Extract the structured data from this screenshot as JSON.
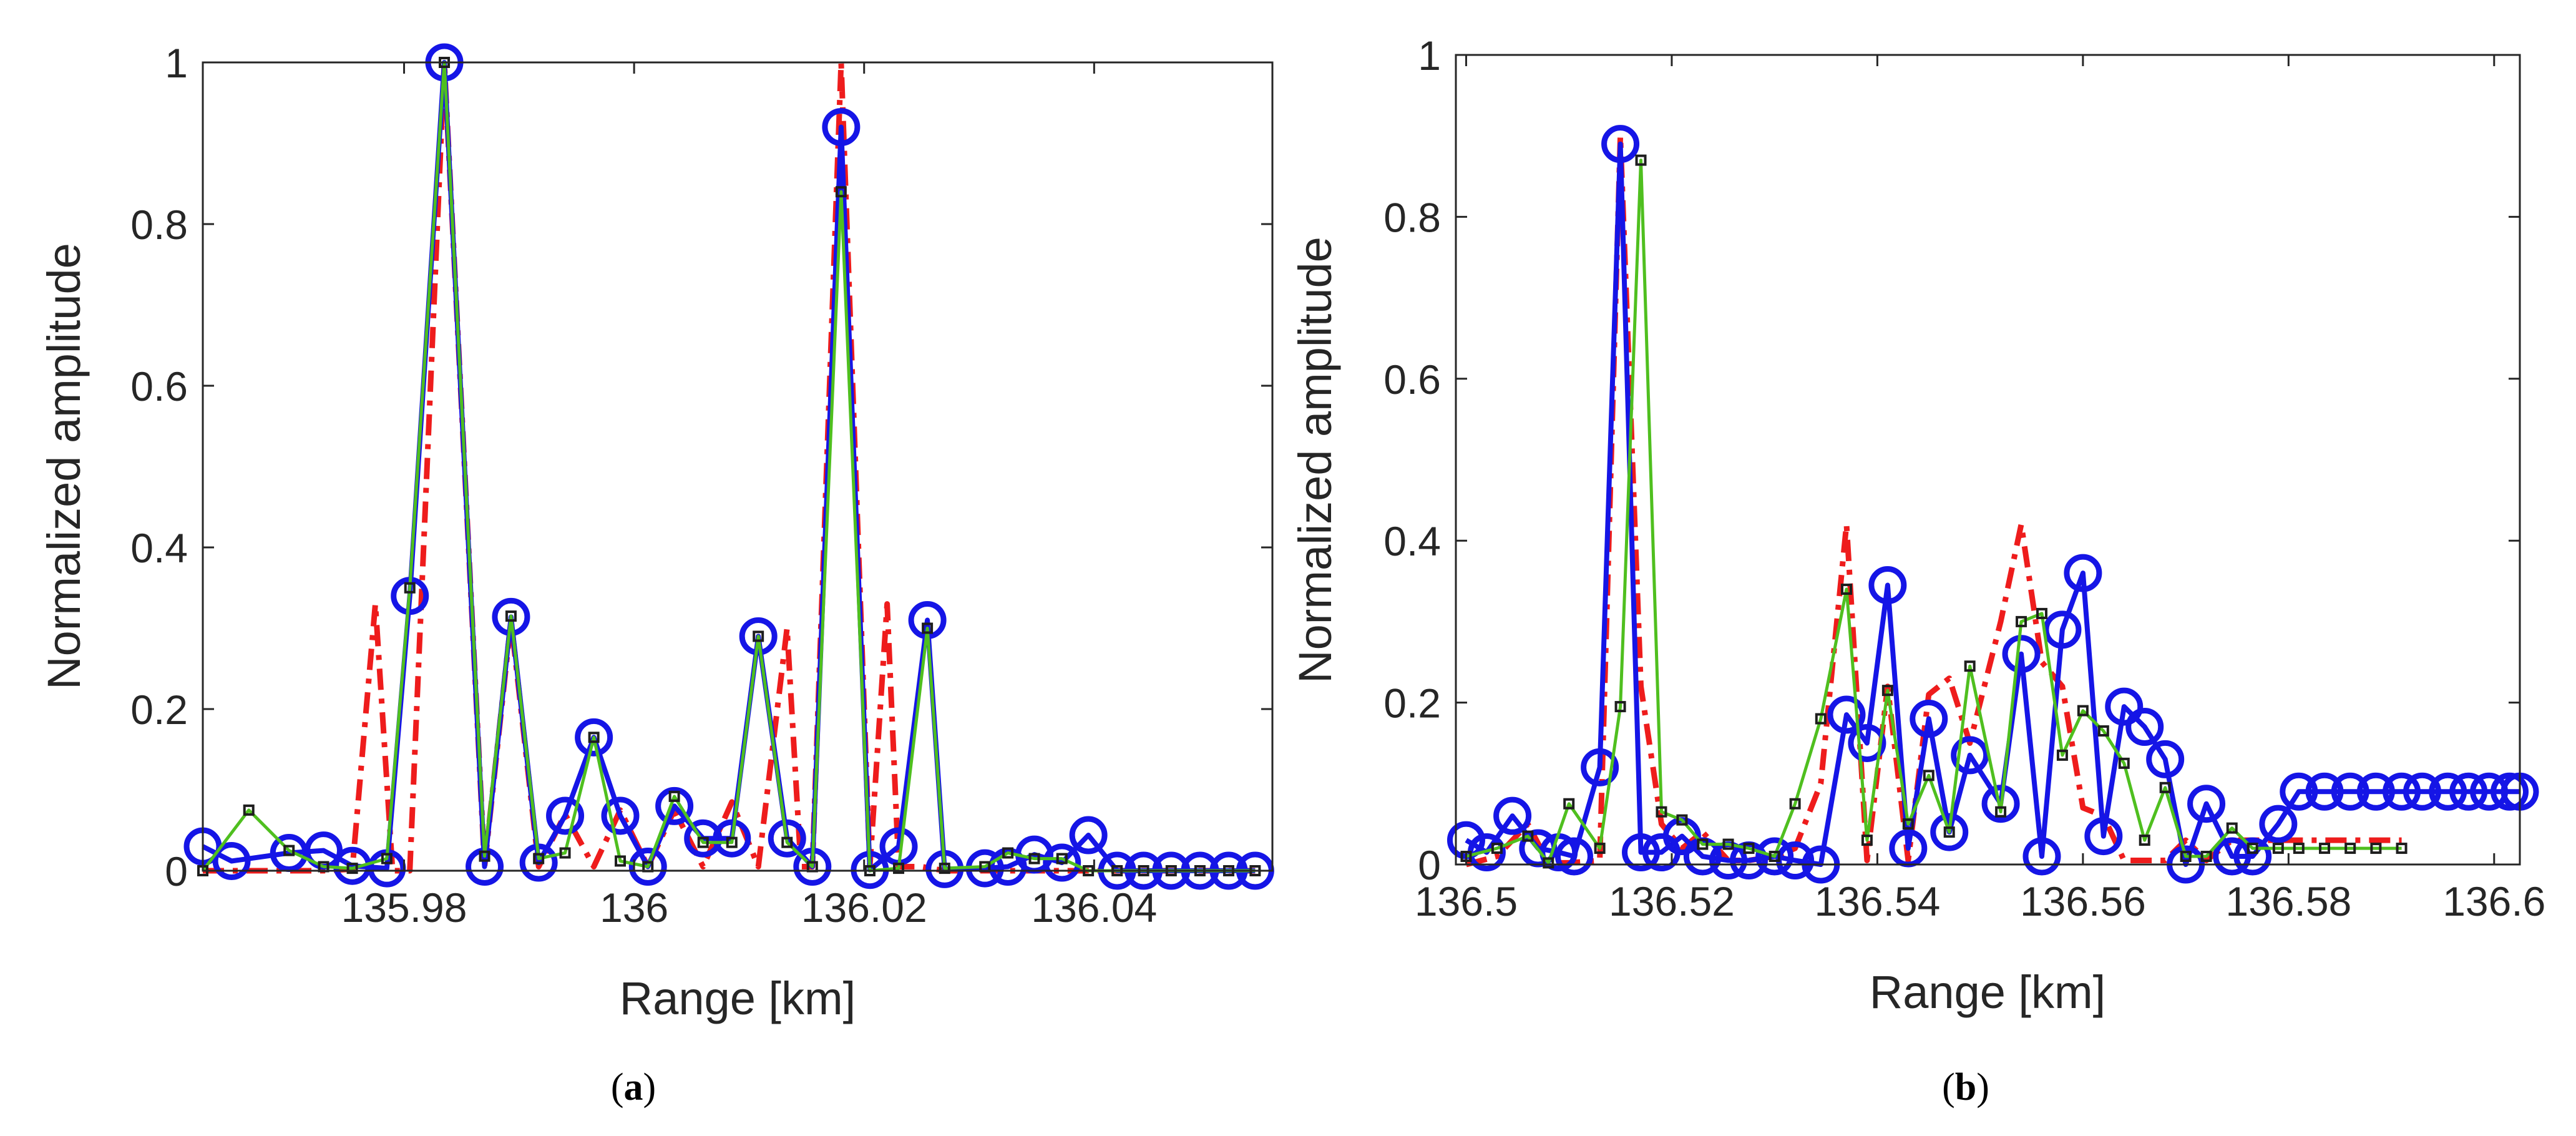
{
  "chart_data": [
    {
      "type": "line",
      "panel": "a",
      "caption": {
        "open": "(",
        "letter": "a",
        "close": ")"
      },
      "xlabel": "Range [km]",
      "ylabel": "Normalized amplitude",
      "xlim": [
        135.9625,
        136.0555
      ],
      "ylim": [
        0,
        1
      ],
      "xticks": [
        135.98,
        136,
        136.02,
        136.04
      ],
      "xtick_labels": [
        "135.98",
        "136",
        "136.02",
        "136.04"
      ],
      "yticks": [
        0,
        0.2,
        0.4,
        0.6,
        0.8,
        1
      ],
      "ytick_labels": [
        "0",
        "0.2",
        "0.4",
        "0.6",
        "0.8",
        "1"
      ],
      "series": [
        {
          "name": "blue circles",
          "color": "#1515e6",
          "marker": "circle",
          "style": "solid",
          "x": [
            135.9625,
            135.965,
            135.97,
            135.973,
            135.9755,
            135.9785,
            135.9805,
            135.9835,
            135.987,
            135.9893,
            135.9917,
            135.994,
            135.9965,
            135.9988,
            136.0012,
            136.0035,
            136.006,
            136.0085,
            136.0108,
            136.0133,
            136.0155,
            136.018,
            136.0205,
            136.023,
            136.0255,
            136.027,
            136.0305,
            136.0325,
            136.0348,
            136.0372,
            136.0395,
            136.042,
            136.0443,
            136.0467,
            136.0492,
            136.0517,
            136.054
          ],
          "y": [
            0.03,
            0.012,
            0.022,
            0.025,
            0.006,
            0.003,
            0.34,
            1.0,
            0.005,
            0.314,
            0.01,
            0.068,
            0.165,
            0.068,
            0.005,
            0.08,
            0.04,
            0.04,
            0.29,
            0.04,
            0.005,
            0.92,
            0.001,
            0.03,
            0.31,
            0.002,
            0.003,
            0.005,
            0.02,
            0.01,
            0.044,
            0.0,
            0.0,
            0.0,
            0.0,
            0.0,
            0.0
          ]
        },
        {
          "name": "green squares",
          "color": "#4fbf1f",
          "marker": "square",
          "style": "solid",
          "x": [
            135.9625,
            135.9665,
            135.97,
            135.973,
            135.9755,
            135.9785,
            135.9805,
            135.9835,
            135.987,
            135.9893,
            135.9917,
            135.994,
            135.9965,
            135.9988,
            136.0012,
            136.0035,
            136.006,
            136.0085,
            136.0108,
            136.0133,
            136.0155,
            136.018,
            136.0205,
            136.023,
            136.0255,
            136.027,
            136.0305,
            136.0325,
            136.0348,
            136.0372,
            136.0395,
            136.042,
            136.0443,
            136.0467,
            136.0492,
            136.0517,
            136.054
          ],
          "y": [
            0.0,
            0.075,
            0.025,
            0.005,
            0.003,
            0.015,
            0.35,
            1.0,
            0.018,
            0.315,
            0.015,
            0.022,
            0.165,
            0.012,
            0.005,
            0.092,
            0.035,
            0.035,
            0.29,
            0.035,
            0.005,
            0.84,
            0.0,
            0.003,
            0.3,
            0.003,
            0.005,
            0.022,
            0.015,
            0.015,
            0.0,
            0.0,
            0.0,
            0.0,
            0.0,
            0.0,
            0.0
          ]
        },
        {
          "name": "red dash-dot",
          "color": "#ee1c1c",
          "marker": "none",
          "style": "dash-dot",
          "x": [
            135.9625,
            135.965,
            135.97,
            135.973,
            135.9755,
            135.9775,
            135.979,
            135.9805,
            135.9835,
            135.987,
            135.9893,
            135.9917,
            135.994,
            135.9965,
            135.9988,
            136.0012,
            136.0035,
            136.006,
            136.0085,
            136.0108,
            136.0133,
            136.0145,
            136.0155,
            136.018,
            136.0205,
            136.022,
            136.023,
            136.025,
            136.027,
            136.0305,
            136.0325,
            136.0348,
            136.0372,
            136.0395,
            136.042,
            136.0443,
            136.0467,
            136.0492,
            136.0517,
            136.054
          ],
          "y": [
            0.0,
            0.0,
            0.0,
            0.0,
            0.002,
            0.33,
            0.0,
            0.0,
            1.0,
            0.005,
            0.31,
            0.005,
            0.07,
            0.005,
            0.075,
            0.005,
            0.075,
            0.005,
            0.085,
            0.005,
            0.3,
            0.005,
            0.005,
            1.0,
            0.005,
            0.33,
            0.005,
            0.005,
            0.0,
            0.0,
            0.0,
            0.0,
            0.0,
            0.0,
            0.0,
            0.0,
            0.0,
            0.0,
            0.0,
            0.0
          ]
        }
      ]
    },
    {
      "type": "line",
      "panel": "b",
      "caption": {
        "open": "(",
        "letter": "b",
        "close": ")"
      },
      "xlabel": "Range [km]",
      "ylabel": "Normalized amplitude",
      "xlim": [
        136.499,
        136.6025
      ],
      "ylim": [
        0,
        1
      ],
      "xticks": [
        136.5,
        136.52,
        136.54,
        136.56,
        136.58,
        136.6
      ],
      "xtick_labels": [
        "136.5",
        "136.52",
        "136.54",
        "136.56",
        "136.58",
        "136.6"
      ],
      "yticks": [
        0,
        0.2,
        0.4,
        0.6,
        0.8,
        1
      ],
      "ytick_labels": [
        "0",
        "0.2",
        "0.4",
        "0.6",
        "0.8",
        "1"
      ],
      "series": [
        {
          "name": "blue circles",
          "color": "#1515e6",
          "marker": "circle",
          "style": "solid",
          "x": [
            136.5,
            136.502,
            136.5045,
            136.507,
            136.509,
            136.5105,
            136.513,
            136.515,
            136.517,
            136.519,
            136.521,
            136.523,
            136.5255,
            136.5275,
            136.53,
            136.532,
            136.5345,
            136.537,
            136.539,
            136.541,
            136.543,
            136.545,
            136.547,
            136.549,
            136.552,
            136.554,
            136.556,
            136.558,
            136.56,
            136.562,
            136.564,
            136.566,
            136.568,
            136.57,
            136.572,
            136.5745,
            136.5765,
            136.579,
            136.581,
            136.5835,
            136.586,
            136.5885,
            136.591,
            136.593,
            136.5955,
            136.5975,
            136.5995,
            136.6015,
            136.6025
          ],
          "y": [
            0.03,
            0.015,
            0.06,
            0.02,
            0.015,
            0.01,
            0.12,
            0.89,
            0.015,
            0.015,
            0.035,
            0.01,
            0.005,
            0.005,
            0.01,
            0.005,
            0.0,
            0.185,
            0.15,
            0.345,
            0.02,
            0.18,
            0.04,
            0.135,
            0.075,
            0.26,
            0.01,
            0.29,
            0.36,
            0.035,
            0.195,
            0.17,
            0.13,
            0.0,
            0.075,
            0.01,
            0.01,
            0.05,
            0.09,
            0.09,
            0.09,
            0.09,
            0.09,
            0.09,
            0.09,
            0.09,
            0.09,
            0.09,
            0.09
          ]
        },
        {
          "name": "green squares",
          "color": "#4fbf1f",
          "marker": "square",
          "style": "solid",
          "x": [
            136.5,
            136.503,
            136.506,
            136.508,
            136.51,
            136.513,
            136.515,
            136.517,
            136.519,
            136.521,
            136.523,
            136.5255,
            136.5275,
            136.53,
            136.532,
            136.5345,
            136.537,
            136.539,
            136.541,
            136.543,
            136.545,
            136.547,
            136.549,
            136.552,
            136.554,
            136.556,
            136.558,
            136.56,
            136.562,
            136.564,
            136.566,
            136.568,
            136.57,
            136.572,
            136.5745,
            136.5765,
            136.579,
            136.581,
            136.5835,
            136.586,
            136.5885,
            136.591
          ],
          "y": [
            0.01,
            0.02,
            0.035,
            0.002,
            0.075,
            0.02,
            0.195,
            0.87,
            0.065,
            0.055,
            0.025,
            0.025,
            0.02,
            0.01,
            0.075,
            0.18,
            0.34,
            0.03,
            0.215,
            0.05,
            0.11,
            0.04,
            0.245,
            0.065,
            0.3,
            0.31,
            0.135,
            0.19,
            0.165,
            0.125,
            0.03,
            0.095,
            0.01,
            0.01,
            0.045,
            0.02,
            0.02,
            0.02,
            0.02,
            0.02,
            0.02,
            0.02
          ]
        },
        {
          "name": "red dash-dot",
          "color": "#ee1c1c",
          "marker": "none",
          "style": "dash-dot",
          "x": [
            136.5,
            136.503,
            136.506,
            136.508,
            136.51,
            136.513,
            136.515,
            136.517,
            136.519,
            136.521,
            136.523,
            136.5255,
            136.5275,
            136.53,
            136.532,
            136.5345,
            136.537,
            136.539,
            136.541,
            136.543,
            136.545,
            136.547,
            136.549,
            136.552,
            136.554,
            136.556,
            136.558,
            136.56,
            136.562,
            136.564,
            136.566,
            136.568,
            136.57,
            136.572,
            136.5745,
            136.5765,
            136.579,
            136.581,
            136.5835,
            136.586,
            136.5885,
            136.591
          ],
          "y": [
            0.0,
            0.01,
            0.05,
            0.002,
            0.002,
            0.005,
            0.9,
            0.22,
            0.05,
            0.02,
            0.04,
            0.005,
            0.005,
            0.01,
            0.02,
            0.1,
            0.42,
            0.005,
            0.22,
            0.005,
            0.21,
            0.23,
            0.15,
            0.3,
            0.42,
            0.25,
            0.22,
            0.07,
            0.06,
            0.005,
            0.005,
            0.005,
            0.03,
            0.005,
            0.03,
            0.03,
            0.03,
            0.03,
            0.03,
            0.03,
            0.03,
            0.03
          ]
        }
      ]
    }
  ]
}
